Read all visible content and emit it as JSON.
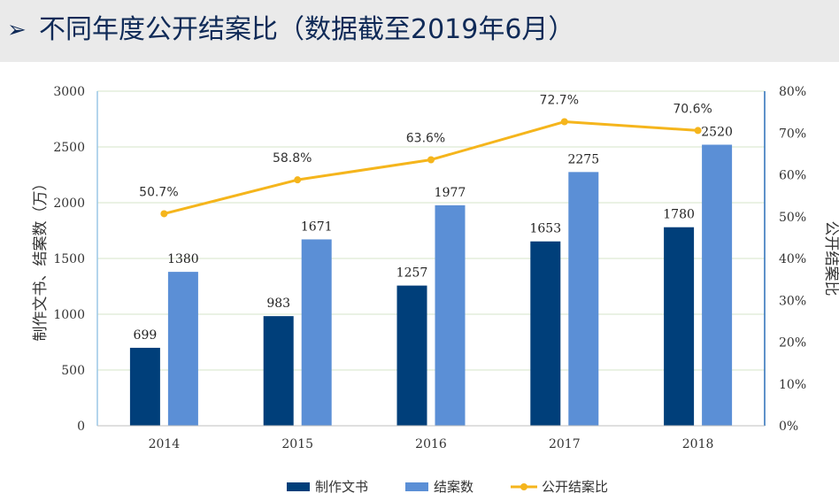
{
  "header": {
    "bullet": "➢",
    "title": "不同年度公开结案比（数据截至2019年6月）"
  },
  "colors": {
    "header_bg": "#eaeaea",
    "title": "#0f2a57",
    "series_docs": "#003f7a",
    "series_cases": "#5b8fd6",
    "series_ratio": "#f5b51c",
    "gridline": "#d5e6c8",
    "left_axis": "#9cc7e6",
    "right_axis": "#2a6fb8"
  },
  "chart_data": {
    "type": "bar",
    "categories": [
      "2014",
      "2015",
      "2016",
      "2017",
      "2018"
    ],
    "series": [
      {
        "name": "制作文书",
        "type": "bar",
        "axis": "left",
        "values": [
          699,
          983,
          1257,
          1653,
          1780
        ]
      },
      {
        "name": "结案数",
        "type": "bar",
        "axis": "left",
        "values": [
          1380,
          1671,
          1977,
          2275,
          2520
        ]
      },
      {
        "name": "公开结案比",
        "type": "line",
        "axis": "right",
        "values": [
          50.7,
          58.8,
          63.6,
          72.7,
          70.6
        ],
        "labels": [
          "50.7%",
          "58.8%",
          "63.6%",
          "72.7%",
          "70.6%"
        ]
      }
    ],
    "y_left": {
      "label": "制作文书、结案数（万）",
      "ylim": [
        0,
        3000
      ],
      "ticks": [
        "0",
        "500",
        "1000",
        "1500",
        "2000",
        "2500",
        "3000"
      ]
    },
    "y_right": {
      "label": "公开结案比",
      "ylim": [
        0,
        80
      ],
      "ticks": [
        "0%",
        "10%",
        "20%",
        "30%",
        "40%",
        "50%",
        "60%",
        "70%",
        "80%"
      ]
    },
    "grid": true,
    "legend_position": "bottom"
  }
}
